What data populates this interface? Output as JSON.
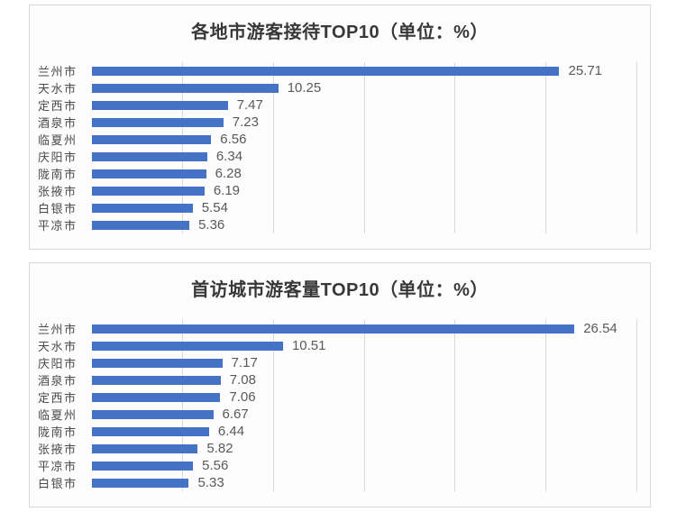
{
  "style": {
    "bar_color": "#4472C4",
    "gridline_color": "#D9D9D9",
    "panel_border_color": "#D9D9D9",
    "title_color": "#383838",
    "category_label_color": "#4A4A4A",
    "value_label_color": "#595959",
    "background": "#FFFFFF"
  },
  "chart_data": [
    {
      "type": "bar",
      "orientation": "horizontal",
      "title": "各地市游客接待TOP10（单位：%）",
      "categories": [
        "兰州市",
        "天水市",
        "定西市",
        "酒泉市",
        "临夏州",
        "庆阳市",
        "陇南市",
        "张掖市",
        "白银市",
        "平凉市"
      ],
      "values": [
        25.71,
        10.25,
        7.47,
        7.23,
        6.56,
        6.34,
        6.28,
        6.19,
        5.54,
        5.36
      ],
      "value_labels": [
        "25.71",
        "10.25",
        "7.47",
        "7.23",
        "6.56",
        "6.34",
        "6.28",
        "6.19",
        "5.54",
        "5.36"
      ],
      "xlabel": "",
      "ylabel": "",
      "xlim": [
        0,
        30
      ],
      "gridline_ticks": [
        5,
        10,
        15,
        20,
        25,
        30
      ],
      "grid": "vertical-on",
      "legend": "none",
      "data_labels": "outside-end"
    },
    {
      "type": "bar",
      "orientation": "horizontal",
      "title": "首访城市游客量TOP10（单位：%）",
      "categories": [
        "兰州市",
        "天水市",
        "庆阳市",
        "酒泉市",
        "定西市",
        "临夏州",
        "陇南市",
        "张掖市",
        "平凉市",
        "白银市"
      ],
      "values": [
        26.54,
        10.51,
        7.17,
        7.08,
        7.06,
        6.67,
        6.44,
        5.82,
        5.56,
        5.33
      ],
      "value_labels": [
        "26.54",
        "10.51",
        "7.17",
        "7.08",
        "7.06",
        "6.67",
        "6.44",
        "5.82",
        "5.56",
        "5.33"
      ],
      "xlabel": "",
      "ylabel": "",
      "xlim": [
        0,
        30
      ],
      "gridline_ticks": [
        5,
        10,
        15,
        20,
        25,
        30
      ],
      "grid": "vertical-on",
      "legend": "none",
      "data_labels": "outside-end"
    }
  ]
}
